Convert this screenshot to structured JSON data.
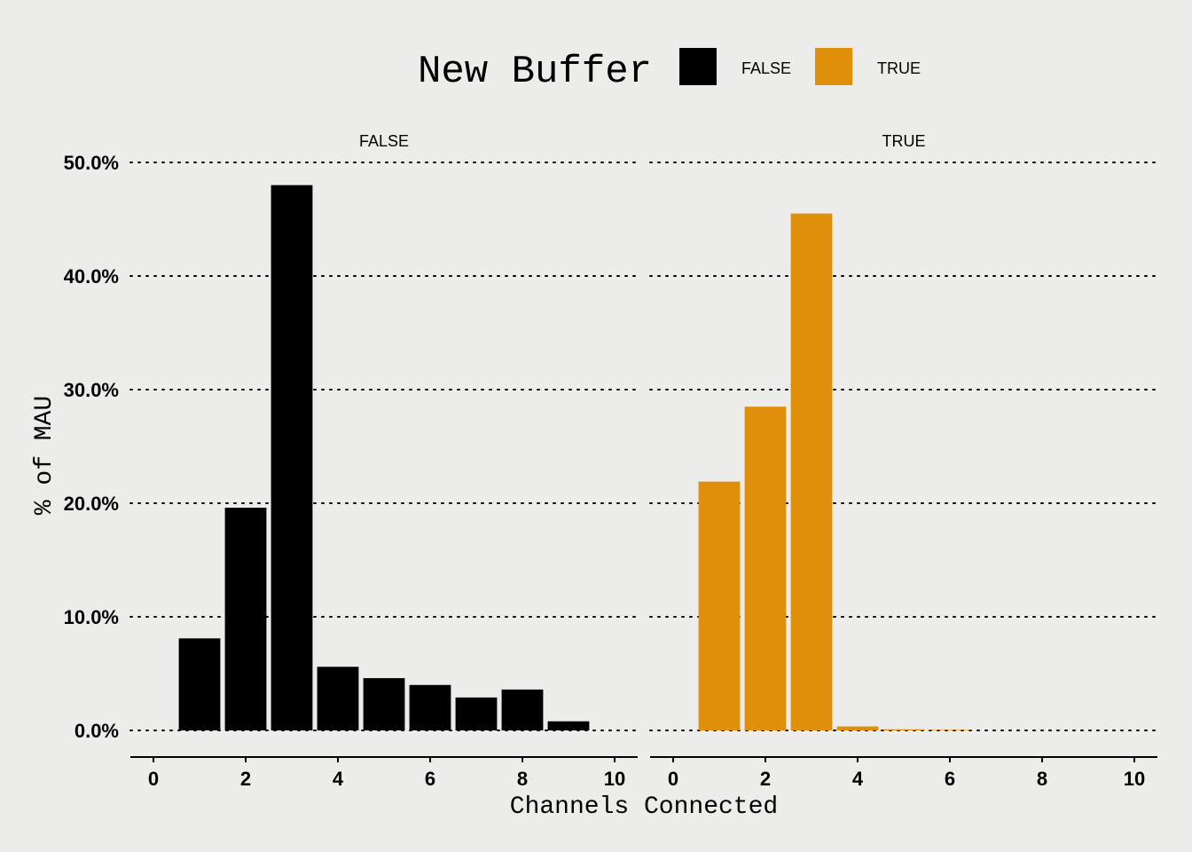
{
  "chart_data": {
    "type": "bar",
    "legend": {
      "title": "New Buffer",
      "placement": "top",
      "entries": [
        {
          "label": "FALSE",
          "color": "#000000"
        },
        {
          "label": "TRUE",
          "color": "#e08f0a"
        }
      ]
    },
    "xlabel": "Channels Connected",
    "ylabel": "% of MAU",
    "xlim": [
      -0.5,
      10.5
    ],
    "ylim": [
      0,
      50
    ],
    "xticks": [
      0,
      2,
      4,
      6,
      8,
      10
    ],
    "yticks": [
      0,
      10,
      20,
      30,
      40,
      50
    ],
    "ytick_labels": [
      "0.0%",
      "10.0%",
      "20.0%",
      "30.0%",
      "40.0%",
      "50.0%"
    ],
    "grid": "horizontal dotted",
    "panels": [
      {
        "label": "FALSE",
        "color": "#000000",
        "x": [
          1,
          2,
          3,
          4,
          5,
          6,
          7,
          8,
          9
        ],
        "values": [
          8.1,
          19.6,
          48.0,
          5.6,
          4.6,
          4.0,
          2.9,
          3.6,
          0.8
        ]
      },
      {
        "label": "TRUE",
        "color": "#e08f0a",
        "x": [
          1,
          2,
          3,
          4,
          5,
          6
        ],
        "values": [
          21.9,
          28.5,
          45.5,
          0.35,
          0.1,
          0.05
        ]
      }
    ]
  }
}
